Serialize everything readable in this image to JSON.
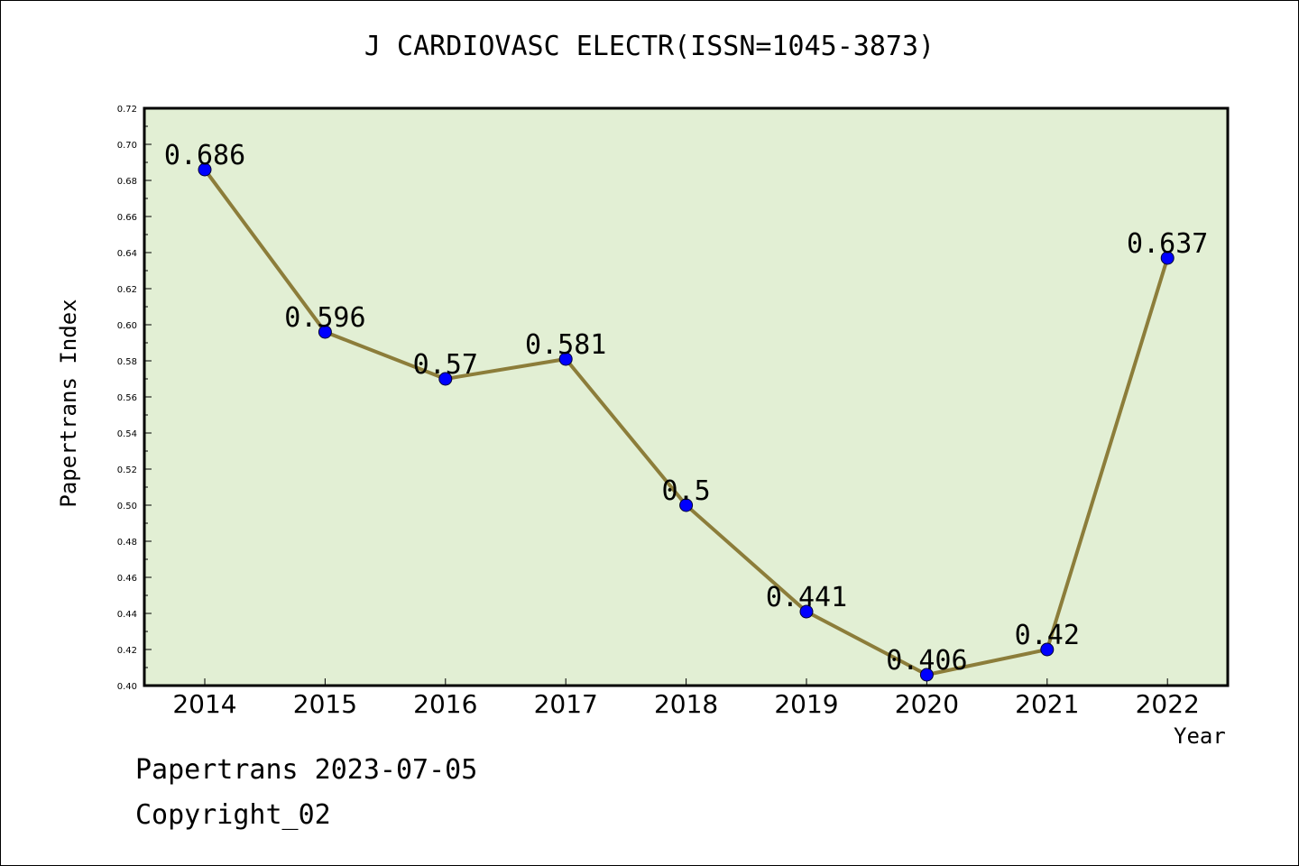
{
  "chart_data": {
    "type": "line",
    "title": "J CARDIOVASC ELECTR(ISSN=1045-3873)",
    "xlabel": "Year",
    "ylabel": "Papertrans Index",
    "categories": [
      "2014",
      "2015",
      "2016",
      "2017",
      "2018",
      "2019",
      "2020",
      "2021",
      "2022"
    ],
    "series": [
      {
        "values": [
          0.686,
          0.596,
          0.57,
          0.581,
          0.5,
          0.441,
          0.406,
          0.42,
          0.637
        ],
        "data_labels": [
          "0.686",
          "0.596",
          "0.57",
          "0.581",
          "0.5",
          "0.441",
          "0.406",
          "0.42",
          "0.637"
        ]
      }
    ],
    "ylim": [
      0.4,
      0.72
    ],
    "yticks": [
      "0.40",
      "0.42",
      "0.44",
      "0.46",
      "0.48",
      "0.50",
      "0.52",
      "0.54",
      "0.56",
      "0.58",
      "0.60",
      "0.62",
      "0.64",
      "0.66",
      "0.68",
      "0.70",
      "0.72"
    ],
    "grid": false,
    "colors": {
      "plot_background": "#e2efd4",
      "line": "#8c7d3a",
      "marker": "#0000ff"
    }
  },
  "footer": {
    "date_text": "Papertrans 2023-07-05",
    "copyright_text": "Copyright_02"
  }
}
